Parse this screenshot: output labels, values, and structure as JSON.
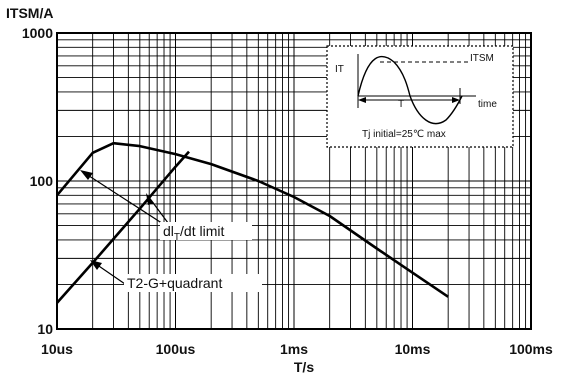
{
  "chart_data": {
    "type": "line",
    "title": "",
    "ylabel": "ITSM/A",
    "xlabel": "T/s",
    "x_scale": "log",
    "y_scale": "log",
    "xlim_s": [
      1e-05,
      0.1
    ],
    "ylim": [
      10,
      1000
    ],
    "grid": true,
    "x_tick_labels": [
      "10us",
      "100us",
      "1ms",
      "10ms",
      "100ms"
    ],
    "y_tick_labels": [
      "1000",
      "100",
      "10"
    ],
    "series": [
      {
        "name": "T2-G+quadrant",
        "x_s": [
          1e-05,
          2e-05,
          3e-05,
          5e-05,
          0.0001,
          0.0002,
          0.0005,
          0.001,
          0.002,
          0.005,
          0.01,
          0.02
        ],
        "values": [
          80,
          155,
          180,
          172,
          152,
          130,
          100,
          78,
          58,
          35,
          24,
          16.5
        ]
      },
      {
        "name": "dIT/dt limit",
        "x_s": [
          1e-05,
          2e-05,
          5e-05,
          0.0001,
          0.00013
        ],
        "values": [
          15,
          28,
          65,
          125,
          158
        ]
      }
    ],
    "annotations": [
      {
        "text": "dIT/dt limit",
        "main": "dl",
        "sub": "T",
        "rest": "/dt limit"
      },
      {
        "text": "T2-G+quadrant"
      }
    ],
    "inset": {
      "it_label": "IT",
      "itsm_label": "ITSM",
      "t_label": "T",
      "time_label": "time",
      "caption": "Tj initial=25℃ max"
    }
  }
}
